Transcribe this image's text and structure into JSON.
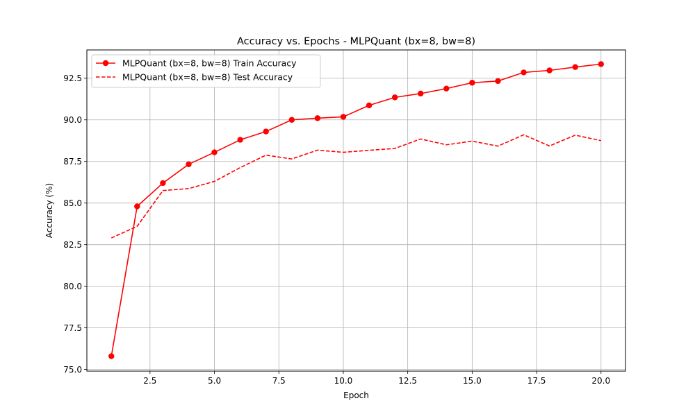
{
  "chart_data": {
    "type": "line",
    "title": "Accuracy vs. Epochs - MLPQuant (bx=8, bw=8)",
    "xlabel": "Epoch",
    "ylabel": "Accuracy (%)",
    "xlim": [
      0.05,
      20.95
    ],
    "ylim": [
      74.9,
      94.2
    ],
    "xticks": [
      2.5,
      5.0,
      7.5,
      10.0,
      12.5,
      15.0,
      17.5,
      20.0
    ],
    "xtick_labels": [
      "2.5",
      "5.0",
      "7.5",
      "10.0",
      "12.5",
      "15.0",
      "17.5",
      "20.0"
    ],
    "yticks": [
      75.0,
      77.5,
      80.0,
      82.5,
      85.0,
      87.5,
      90.0,
      92.5
    ],
    "ytick_labels": [
      "75.0",
      "77.5",
      "80.0",
      "82.5",
      "85.0",
      "87.5",
      "90.0",
      "92.5"
    ],
    "grid": true,
    "legend_position": "top-left",
    "x": [
      1,
      2,
      3,
      4,
      5,
      6,
      7,
      8,
      9,
      10,
      11,
      12,
      13,
      14,
      15,
      16,
      17,
      18,
      19,
      20
    ],
    "series": [
      {
        "name": "MLPQuant (bx=8, bw=8) Train Accuracy",
        "color": "#ff0000",
        "line_style": "solid",
        "marker": "circle",
        "values": [
          75.8,
          84.8,
          86.2,
          87.33,
          88.05,
          88.8,
          89.3,
          90.0,
          90.1,
          90.18,
          90.87,
          91.35,
          91.58,
          91.88,
          92.23,
          92.33,
          92.85,
          92.97,
          93.17,
          93.35
        ]
      },
      {
        "name": "MLPQuant (bx=8, bw=8) Test Accuracy",
        "color": "#ff0000",
        "line_style": "dashed",
        "marker": "none",
        "values": [
          82.9,
          83.6,
          85.75,
          85.87,
          86.3,
          87.13,
          87.88,
          87.65,
          88.18,
          88.05,
          88.17,
          88.28,
          88.85,
          88.5,
          88.72,
          88.42,
          89.1,
          88.43,
          89.08,
          88.75
        ]
      }
    ]
  }
}
